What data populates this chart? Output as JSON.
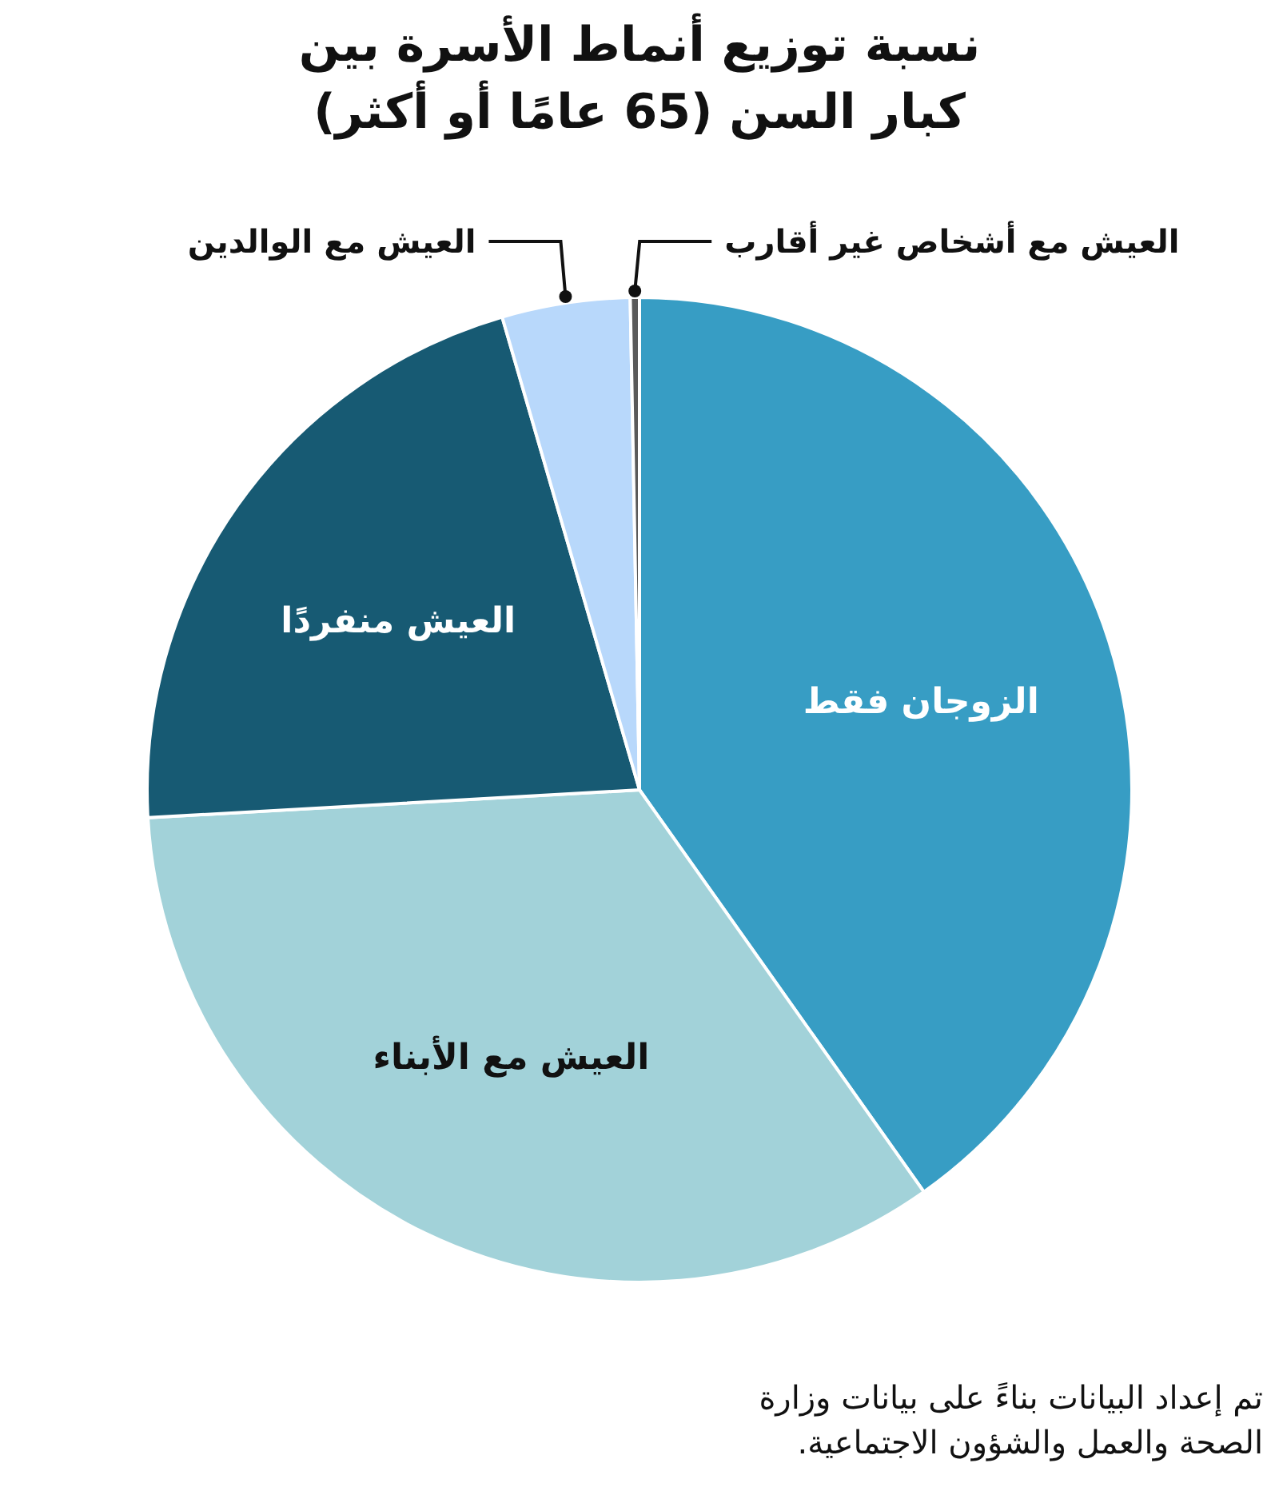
{
  "chart_data": {
    "type": "pie",
    "title": "نسبة توزيع أنماط الأسرة بين كبار السن (65 عامًا أو أكثر)",
    "categories": [
      "الزوجان فقط",
      "العيش مع الأبناء",
      "العيش منفردًا",
      "العيش مع الوالدين",
      "العيش مع أشخاص غير أقارب"
    ],
    "values": [
      40.2,
      33.9,
      21.4,
      4.2,
      0.3
    ],
    "colors": [
      "#379dc4",
      "#a2d2d9",
      "#175a73",
      "#b8d8fb",
      "#5a5a5a"
    ],
    "annotations": [
      "تم إعداد البيانات بناءً على بيانات وزارة الصحة والعمل والشؤون الاجتماعية."
    ]
  }
}
